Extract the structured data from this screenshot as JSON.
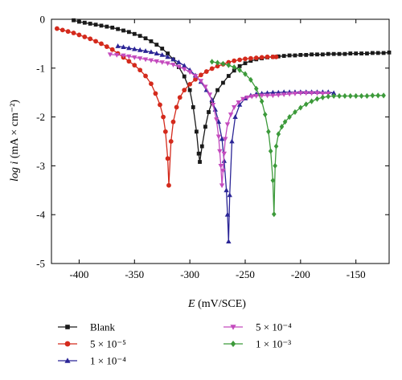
{
  "chart_data": {
    "type": "line",
    "xlabel_italic": "E",
    "xlabel_rest": " (mV/SCE)",
    "ylabel_italic": "log i",
    "ylabel_rest": " (mA × cm⁻²)",
    "xlim": [
      -425,
      -120
    ],
    "ylim": [
      -5,
      0
    ],
    "xticks": [
      -400,
      -350,
      -300,
      -250,
      -200,
      -150
    ],
    "yticks": [
      0,
      -1,
      -2,
      -3,
      -4,
      -5
    ],
    "xtick_labels": [
      "-400",
      "-350",
      "-300",
      "-250",
      "-200",
      "-150"
    ],
    "ytick_labels": [
      "0",
      "-1",
      "-2",
      "-3",
      "-4",
      "-5"
    ],
    "grid": false,
    "legend_position": "bottom",
    "series": [
      {
        "name": "Blank",
        "color": "#1a1a1a",
        "marker": "square",
        "x": [
          -405,
          -400,
          -395,
          -390,
          -385,
          -380,
          -375,
          -370,
          -365,
          -360,
          -355,
          -350,
          -345,
          -340,
          -335,
          -330,
          -325,
          -320,
          -315,
          -310,
          -305,
          -300,
          -297,
          -294,
          -292,
          -291,
          -289,
          -286,
          -283,
          -280,
          -275,
          -270,
          -265,
          -260,
          -255,
          -250,
          -245,
          -240,
          -235,
          -230,
          -225,
          -220,
          -215,
          -210,
          -205,
          -200,
          -195,
          -190,
          -185,
          -180,
          -175,
          -170,
          -165,
          -160,
          -155,
          -150,
          -145,
          -140,
          -135,
          -130,
          -125,
          -120
        ],
        "y": [
          -0.02,
          -0.05,
          -0.07,
          -0.09,
          -0.11,
          -0.13,
          -0.15,
          -0.17,
          -0.2,
          -0.23,
          -0.26,
          -0.3,
          -0.34,
          -0.39,
          -0.45,
          -0.52,
          -0.6,
          -0.7,
          -0.82,
          -0.98,
          -1.17,
          -1.45,
          -1.8,
          -2.3,
          -2.75,
          -2.92,
          -2.6,
          -2.2,
          -1.9,
          -1.7,
          -1.45,
          -1.3,
          -1.16,
          -1.05,
          -0.96,
          -0.9,
          -0.85,
          -0.82,
          -0.8,
          -0.78,
          -0.77,
          -0.76,
          -0.75,
          -0.74,
          -0.74,
          -0.73,
          -0.73,
          -0.72,
          -0.72,
          -0.72,
          -0.71,
          -0.71,
          -0.71,
          -0.71,
          -0.7,
          -0.7,
          -0.7,
          -0.7,
          -0.69,
          -0.69,
          -0.69,
          -0.68
        ]
      },
      {
        "name": "5 × 10⁻⁵",
        "color": "#d42a1c",
        "marker": "circle",
        "x": [
          -420,
          -415,
          -410,
          -405,
          -400,
          -395,
          -390,
          -385,
          -380,
          -375,
          -370,
          -365,
          -360,
          -355,
          -350,
          -345,
          -340,
          -335,
          -331,
          -327,
          -324,
          -322,
          -320,
          -319,
          -317,
          -315,
          -312,
          -309,
          -305,
          -300,
          -295,
          -290,
          -285,
          -280,
          -275,
          -270,
          -265,
          -260,
          -255,
          -250,
          -245,
          -240,
          -235,
          -230,
          -225,
          -222
        ],
        "y": [
          -0.19,
          -0.22,
          -0.25,
          -0.28,
          -0.32,
          -0.36,
          -0.4,
          -0.45,
          -0.5,
          -0.56,
          -0.62,
          -0.7,
          -0.78,
          -0.86,
          -0.94,
          -1.04,
          -1.16,
          -1.32,
          -1.52,
          -1.75,
          -2.0,
          -2.3,
          -2.85,
          -3.4,
          -2.5,
          -2.1,
          -1.8,
          -1.6,
          -1.45,
          -1.33,
          -1.23,
          -1.14,
          -1.07,
          -1.01,
          -0.96,
          -0.92,
          -0.88,
          -0.85,
          -0.83,
          -0.81,
          -0.8,
          -0.79,
          -0.78,
          -0.77,
          -0.77,
          -0.77
        ]
      },
      {
        "name": "1 × 10⁻⁴",
        "color": "#2b2596",
        "marker": "triangle-up",
        "x": [
          -365,
          -360,
          -355,
          -350,
          -345,
          -340,
          -335,
          -330,
          -325,
          -320,
          -315,
          -310,
          -305,
          -300,
          -295,
          -290,
          -285,
          -280,
          -277,
          -274,
          -271,
          -269,
          -267,
          -266,
          -265,
          -264,
          -262,
          -259,
          -255,
          -250,
          -245,
          -240,
          -235,
          -230,
          -225,
          -220,
          -215,
          -210,
          -205,
          -200,
          -195,
          -190,
          -185,
          -180,
          -175,
          -170
        ],
        "y": [
          -0.55,
          -0.57,
          -0.59,
          -0.61,
          -0.63,
          -0.65,
          -0.67,
          -0.7,
          -0.73,
          -0.77,
          -0.82,
          -0.88,
          -0.95,
          -1.04,
          -1.15,
          -1.28,
          -1.45,
          -1.65,
          -1.85,
          -2.1,
          -2.45,
          -2.9,
          -3.5,
          -4.0,
          -4.55,
          -3.6,
          -2.5,
          -2.0,
          -1.75,
          -1.62,
          -1.56,
          -1.53,
          -1.52,
          -1.51,
          -1.5,
          -1.5,
          -1.49,
          -1.49,
          -1.49,
          -1.49,
          -1.49,
          -1.49,
          -1.49,
          -1.49,
          -1.49,
          -1.51
        ]
      },
      {
        "name": "5 × 10⁻⁴",
        "color": "#c44bbe",
        "marker": "triangle-down",
        "x": [
          -372,
          -366,
          -360,
          -355,
          -350,
          -345,
          -340,
          -335,
          -330,
          -325,
          -320,
          -315,
          -310,
          -305,
          -300,
          -295,
          -290,
          -286,
          -282,
          -279,
          -276,
          -274,
          -273,
          -272,
          -271,
          -270,
          -269,
          -268,
          -266,
          -263,
          -260,
          -256,
          -252,
          -248,
          -244,
          -240,
          -235,
          -230,
          -225,
          -220,
          -215,
          -210,
          -205,
          -200,
          -195,
          -190,
          -185,
          -180,
          -175
        ],
        "y": [
          -0.72,
          -0.73,
          -0.74,
          -0.76,
          -0.78,
          -0.8,
          -0.82,
          -0.84,
          -0.86,
          -0.88,
          -0.9,
          -0.93,
          -0.97,
          -1.02,
          -1.08,
          -1.16,
          -1.26,
          -1.38,
          -1.54,
          -1.75,
          -2.05,
          -2.4,
          -2.7,
          -3.0,
          -3.4,
          -3.1,
          -2.75,
          -2.45,
          -2.15,
          -1.95,
          -1.8,
          -1.7,
          -1.63,
          -1.6,
          -1.58,
          -1.57,
          -1.56,
          -1.56,
          -1.56,
          -1.55,
          -1.54,
          -1.53,
          -1.52,
          -1.51,
          -1.51,
          -1.51,
          -1.51,
          -1.52,
          -1.52
        ]
      },
      {
        "name": "1 × 10⁻³",
        "color": "#3c9a3a",
        "marker": "diamond",
        "x": [
          -280,
          -275,
          -270,
          -265,
          -260,
          -255,
          -250,
          -245,
          -240,
          -235,
          -232,
          -229,
          -227,
          -225,
          -224,
          -223,
          -222,
          -220,
          -217,
          -214,
          -210,
          -205,
          -200,
          -195,
          -190,
          -185,
          -180,
          -175,
          -170,
          -165,
          -160,
          -155,
          -150,
          -145,
          -140,
          -135,
          -130,
          -125
        ],
        "y": [
          -0.87,
          -0.89,
          -0.91,
          -0.94,
          -0.98,
          -1.04,
          -1.12,
          -1.24,
          -1.42,
          -1.68,
          -1.95,
          -2.3,
          -2.7,
          -3.3,
          -3.99,
          -3.0,
          -2.6,
          -2.35,
          -2.2,
          -2.1,
          -2.0,
          -1.9,
          -1.81,
          -1.74,
          -1.68,
          -1.63,
          -1.6,
          -1.58,
          -1.57,
          -1.57,
          -1.57,
          -1.57,
          -1.57,
          -1.57,
          -1.57,
          -1.56,
          -1.56,
          -1.56
        ]
      }
    ]
  }
}
